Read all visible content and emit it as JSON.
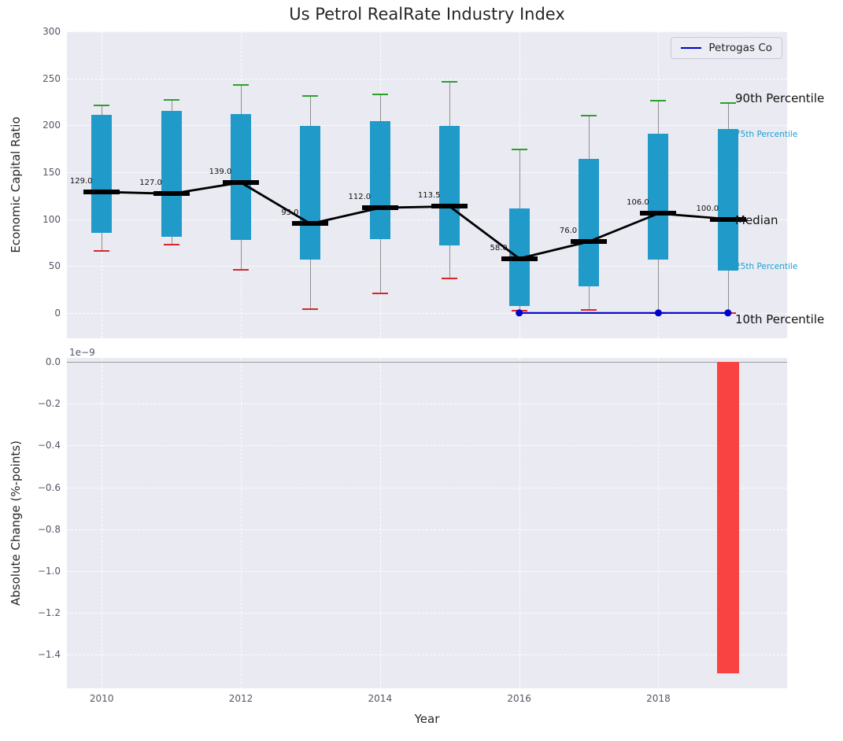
{
  "title": "Us Petrol RealRate Industry Index",
  "legend": {
    "label": "Petrogas Co"
  },
  "axes": {
    "xlabel": "Year",
    "xticks": [
      {
        "value": 2010,
        "label": "2010"
      },
      {
        "value": 2012,
        "label": "2012"
      },
      {
        "value": 2014,
        "label": "2014"
      },
      {
        "value": 2016,
        "label": "2016"
      },
      {
        "value": 2018,
        "label": "2018"
      }
    ],
    "top_yticks": [
      {
        "value": 0,
        "label": "0"
      },
      {
        "value": 50,
        "label": "50"
      },
      {
        "value": 100,
        "label": "100"
      },
      {
        "value": 150,
        "label": "150"
      },
      {
        "value": 200,
        "label": "200"
      },
      {
        "value": 250,
        "label": "250"
      },
      {
        "value": 300,
        "label": "300"
      }
    ],
    "bottom_yticks": [
      {
        "value": 0,
        "label": "0.0"
      },
      {
        "value": -2e-10,
        "label": "−0.2"
      },
      {
        "value": -4e-10,
        "label": "−0.4"
      },
      {
        "value": -6e-10,
        "label": "−0.6"
      },
      {
        "value": -8e-10,
        "label": "−0.8"
      },
      {
        "value": -1e-09,
        "label": "−1.0"
      },
      {
        "value": -1.2e-09,
        "label": "−1.2"
      },
      {
        "value": -1.4e-09,
        "label": "−1.4"
      }
    ]
  },
  "annotations": [
    {
      "text": "90th Percentile",
      "y": 229,
      "style": "black"
    },
    {
      "text": "75th Percentile",
      "y": 190,
      "style": "accent"
    },
    {
      "text": "Median",
      "y": 99,
      "style": "black"
    },
    {
      "text": "25th Percentile",
      "y": 49,
      "style": "accent"
    },
    {
      "text": "10th Percentile",
      "y": -7,
      "style": "black"
    }
  ],
  "colors": {
    "box": "#1f9ac9",
    "median": "#000000",
    "whisker": "#8f8f8f",
    "cap_high": "#2ca02c",
    "cap_low": "#d62728",
    "overlay_line": "#0000cd",
    "bar_negative": "#f94343",
    "plot_bg": "#eaeaf2",
    "grid": "#ffffff",
    "accent_text": "#1a9fd4",
    "zero_line": "#9a9aa2"
  },
  "chart_data": [
    {
      "type": "boxplot-timeseries",
      "title": "Us Petrol RealRate Industry Index",
      "ylabel": "Economic Capital Ratio",
      "xlim": [
        2009.5,
        2019.85
      ],
      "ylim": [
        -27,
        300
      ],
      "years": [
        2010,
        2011,
        2012,
        2013,
        2014,
        2015,
        2016,
        2017,
        2018,
        2019
      ],
      "p90": [
        221,
        227,
        243,
        231,
        233,
        246,
        174,
        210,
        226,
        224
      ],
      "p75": [
        211,
        215,
        212,
        199,
        204,
        199,
        111,
        164,
        191,
        196
      ],
      "median": [
        129,
        127,
        139,
        95,
        112,
        113.5,
        58,
        76,
        106,
        100
      ],
      "p25": [
        85,
        81,
        78,
        57,
        79,
        72,
        7,
        28,
        57,
        45
      ],
      "p10": [
        66,
        73,
        46,
        4,
        21,
        37,
        2,
        3,
        0,
        0
      ],
      "median_labels": [
        "129.0",
        "127.0",
        "139.0",
        "95.0",
        "112.0",
        "113.5",
        "58.0",
        "76.0",
        "106.0",
        "100.0"
      ],
      "overlay_series": {
        "name": "Petrogas Co",
        "years": [
          2016,
          2017,
          2018,
          2019
        ],
        "values": [
          0,
          0,
          0,
          0
        ],
        "marker_years": [
          2016,
          2018,
          2019
        ]
      }
    },
    {
      "type": "bar",
      "ylabel": "Absolute Change (%-points)",
      "scale_note": "1e−9",
      "xlim": [
        2009.5,
        2019.85
      ],
      "ylim": [
        -1.56e-09,
        1.9e-11
      ],
      "categories": [
        2010,
        2011,
        2012,
        2013,
        2014,
        2015,
        2016,
        2017,
        2018,
        2019
      ],
      "values": [
        0,
        0,
        0,
        0,
        0,
        0,
        0,
        0,
        0,
        -1.49e-09
      ]
    }
  ]
}
